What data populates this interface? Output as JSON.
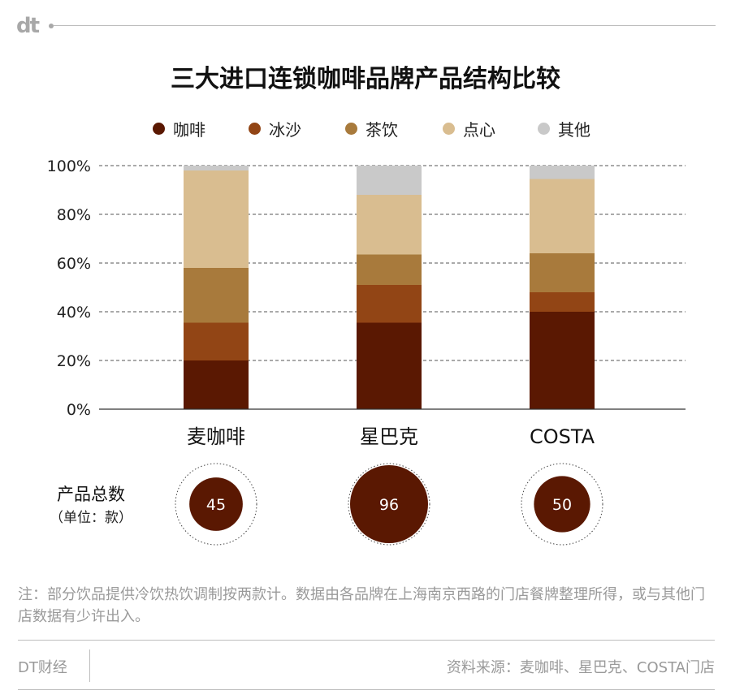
{
  "header": {
    "logo_text": "dt",
    "title": "三大进口连锁咖啡品牌产品结构比较"
  },
  "colors": {
    "coffee": "#5a1802",
    "ice": "#924515",
    "tea": "#a87a3c",
    "snack": "#d9bd90",
    "other": "#c9c9c9",
    "circle": "#5a1802"
  },
  "chart_data": {
    "type": "bar",
    "stacked": true,
    "categories": [
      "麦咖啡",
      "星巴克",
      "COSTA"
    ],
    "series": [
      {
        "name": "咖啡",
        "values": [
          20,
          35.5,
          40
        ]
      },
      {
        "name": "冰沙",
        "values": [
          15.5,
          15.5,
          8
        ]
      },
      {
        "name": "茶饮",
        "values": [
          22.5,
          12.5,
          16
        ]
      },
      {
        "name": "点心",
        "values": [
          40,
          24.5,
          30.5
        ]
      },
      {
        "name": "其他",
        "values": [
          2,
          12,
          5.5
        ]
      }
    ],
    "yticks": [
      "100%",
      "80%",
      "60%",
      "40%",
      "20%",
      "0%"
    ],
    "ylim": [
      0,
      100
    ],
    "grid": true,
    "legend_position": "top"
  },
  "totals": {
    "label": "产品总数",
    "unit_label": "（单位：款）",
    "values": [
      "45",
      "96",
      "50"
    ]
  },
  "note": "注：部分饮品提供冷饮热饮调制按两款计。数据由各品牌在上海南京西路的门店餐牌整理所得，或与其他门店数据有少许出入。",
  "footer": {
    "brand": "DT财经",
    "source": "资料来源：麦咖啡、星巴克、COSTA门店"
  }
}
